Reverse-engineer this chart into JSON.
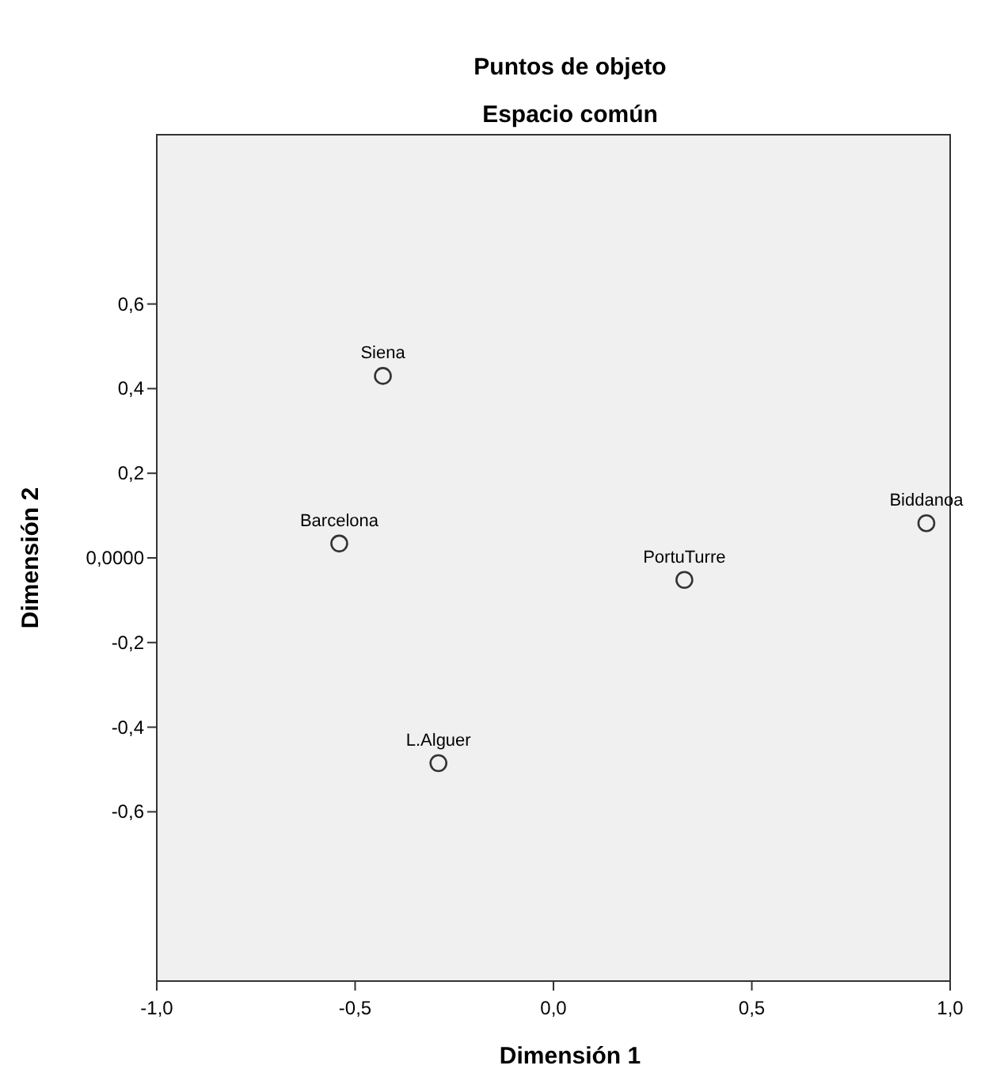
{
  "chart_data": {
    "type": "scatter",
    "title": "Puntos de objeto",
    "subtitle": "Espacio común",
    "xlabel": "Dimensión 1",
    "ylabel": "Dimensión 2",
    "x": [
      -0.43,
      -0.54,
      -0.29,
      0.33,
      0.94
    ],
    "series": [
      {
        "color": "#333333",
        "values": [
          0.43,
          0.034,
          -0.485,
          -0.052,
          0.082
        ]
      }
    ],
    "annotations": [
      {
        "text": "Siena",
        "x": -0.43,
        "y": 0.43
      },
      {
        "text": "Barcelona",
        "x": -0.54,
        "y": 0.034
      },
      {
        "text": "L.Alguer",
        "x": -0.29,
        "y": -0.485
      },
      {
        "text": "PortuTurre",
        "x": 0.33,
        "y": -0.052
      },
      {
        "text": "Biddanoa",
        "x": 0.94,
        "y": 0.082
      }
    ],
    "xlim": [
      -1,
      1
    ],
    "xticks": [
      {
        "value": -1,
        "label": "-1,0"
      },
      {
        "value": -0.5,
        "label": "-0,5"
      },
      {
        "value": 0,
        "label": "0,0"
      },
      {
        "value": 0.5,
        "label": "0,5"
      },
      {
        "value": 1,
        "label": "1,0"
      }
    ],
    "ylim": [
      -1,
      1
    ],
    "yticks": [
      {
        "value": -0.6,
        "label": "-0,6"
      },
      {
        "value": -0.4,
        "label": "-0,4"
      },
      {
        "value": -0.2,
        "label": "-0,2"
      },
      {
        "value": 0,
        "label": "0,0000"
      },
      {
        "value": 0.2,
        "label": "0,2"
      },
      {
        "value": 0.4,
        "label": "0,4"
      },
      {
        "value": 0.6,
        "label": "0,6"
      }
    ],
    "grid": false,
    "marker": "circle"
  }
}
